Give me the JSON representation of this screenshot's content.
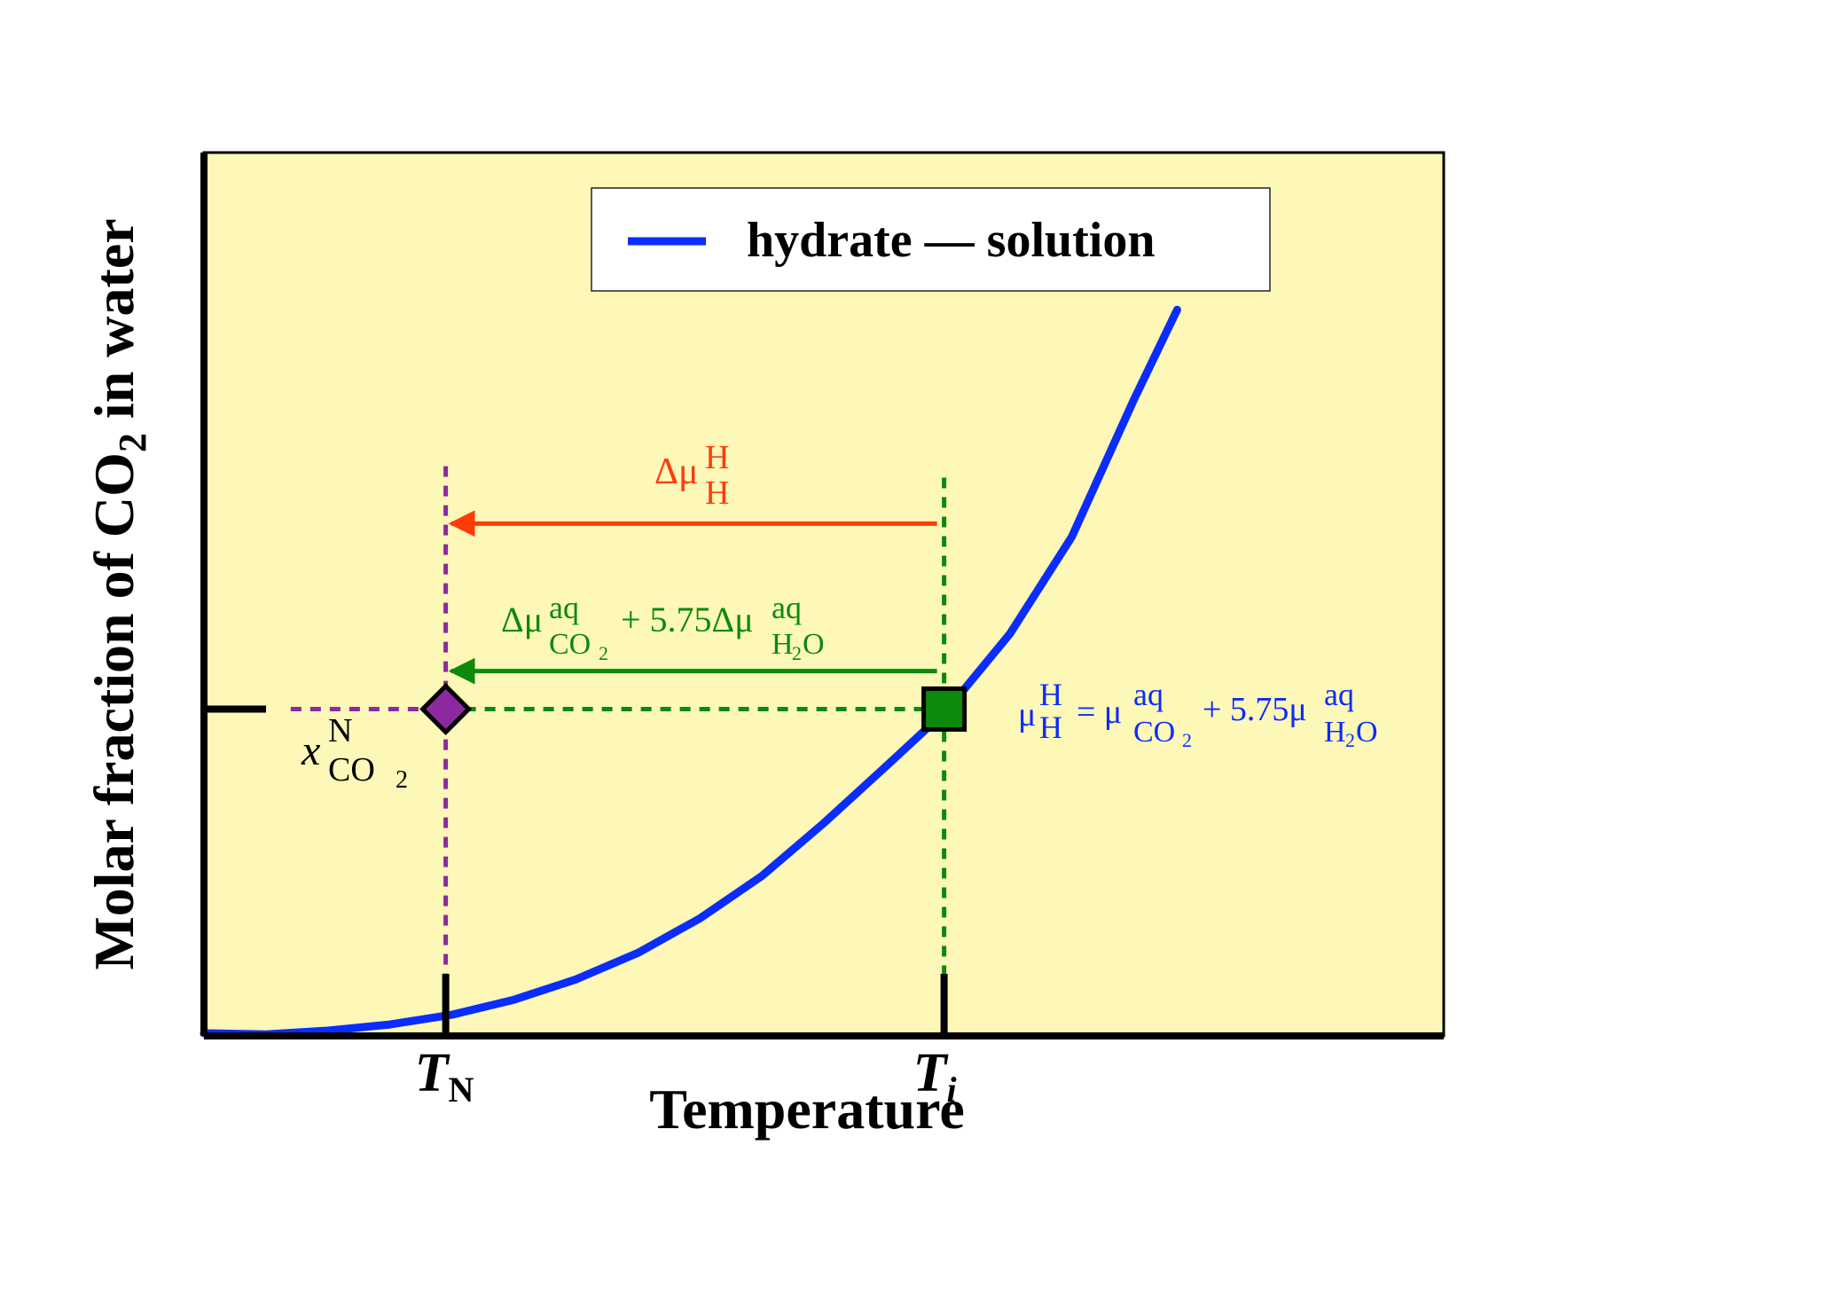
{
  "chart_data": {
    "type": "line",
    "title": "",
    "xlabel": "Temperature",
    "ylabel_parts": {
      "pre": "Molar fraction of CO",
      "sub": "2",
      "post": " in water"
    },
    "x_ticks": [
      {
        "id": "tick-TN",
        "main": "T",
        "sub": "N",
        "x": 0.195
      },
      {
        "id": "tick-Ti",
        "main": "T",
        "sub": "i",
        "x": 0.597
      }
    ],
    "y_ticks": [
      {
        "id": "tick-xN",
        "y": 0.37
      }
    ],
    "xlim": [
      0,
      1
    ],
    "ylim": [
      0,
      1
    ],
    "legend": {
      "position": "top-right",
      "entries": [
        {
          "label": "hydrate — solution",
          "color": "#0a2cff"
        }
      ]
    },
    "series": [
      {
        "name": "hydrate — solution",
        "color": "#0a2cff",
        "x": [
          0,
          0.05,
          0.1,
          0.15,
          0.2,
          0.25,
          0.3,
          0.35,
          0.4,
          0.45,
          0.5,
          0.55,
          0.6,
          0.65,
          0.7,
          0.75,
          0.785
        ],
        "y": [
          0.003,
          0.0018,
          0.006,
          0.013,
          0.024,
          0.041,
          0.064,
          0.094,
          0.133,
          0.181,
          0.241,
          0.305,
          0.37,
          0.455,
          0.565,
          0.72,
          0.822
        ]
      }
    ],
    "points": [
      {
        "name": "nucleation-point",
        "shape": "diamond",
        "x": 0.195,
        "y": 0.37,
        "color": "#8b2a9e"
      },
      {
        "name": "intersection-point",
        "shape": "square",
        "x": 0.597,
        "y": 0.37,
        "color": "#0b8a0b"
      }
    ],
    "arrows": [
      {
        "name": "red-arrow",
        "from_x": 0.597,
        "to_x": 0.195,
        "y": 0.58,
        "color": "#ff3b0a"
      },
      {
        "name": "green-arrow",
        "from_x": 0.597,
        "to_x": 0.195,
        "y": 0.413,
        "color": "#0b8a0b"
      }
    ],
    "annotations": {
      "red": {
        "color": "#ff3b0a",
        "delta": "Δμ",
        "sup": "H",
        "sub": "H"
      },
      "green": {
        "color": "#0b8a0b",
        "t1_delta": "Δμ",
        "t1_sup": "aq",
        "t1_sub": "CO",
        "coef": "+ 5.75Δμ",
        "t2_sup": "aq",
        "t2_sub": "H",
        "sub_digit": "2",
        "t2_sub_end": "O"
      },
      "blue": {
        "color": "#0a2cff",
        "mu": "μ",
        "lhs_sup": "H",
        "lhs_sub": "H",
        "eq": "= μ",
        "r1_sup": "aq",
        "r1_sub": "CO",
        "coef": "+ 5.75μ",
        "r2_sup": "aq",
        "r2_sub": "H",
        "sub_digit": "2",
        "r2_sub_end": "O"
      },
      "xN": {
        "color": "#000000",
        "var": "x",
        "sup": "N",
        "sub": "CO",
        "sub_digit": "2"
      }
    },
    "colors": {
      "background": "#fdf7b8",
      "axis": "#000000",
      "purple_guide": "#8b2a9e",
      "green_guide": "#0b8a0b"
    }
  }
}
